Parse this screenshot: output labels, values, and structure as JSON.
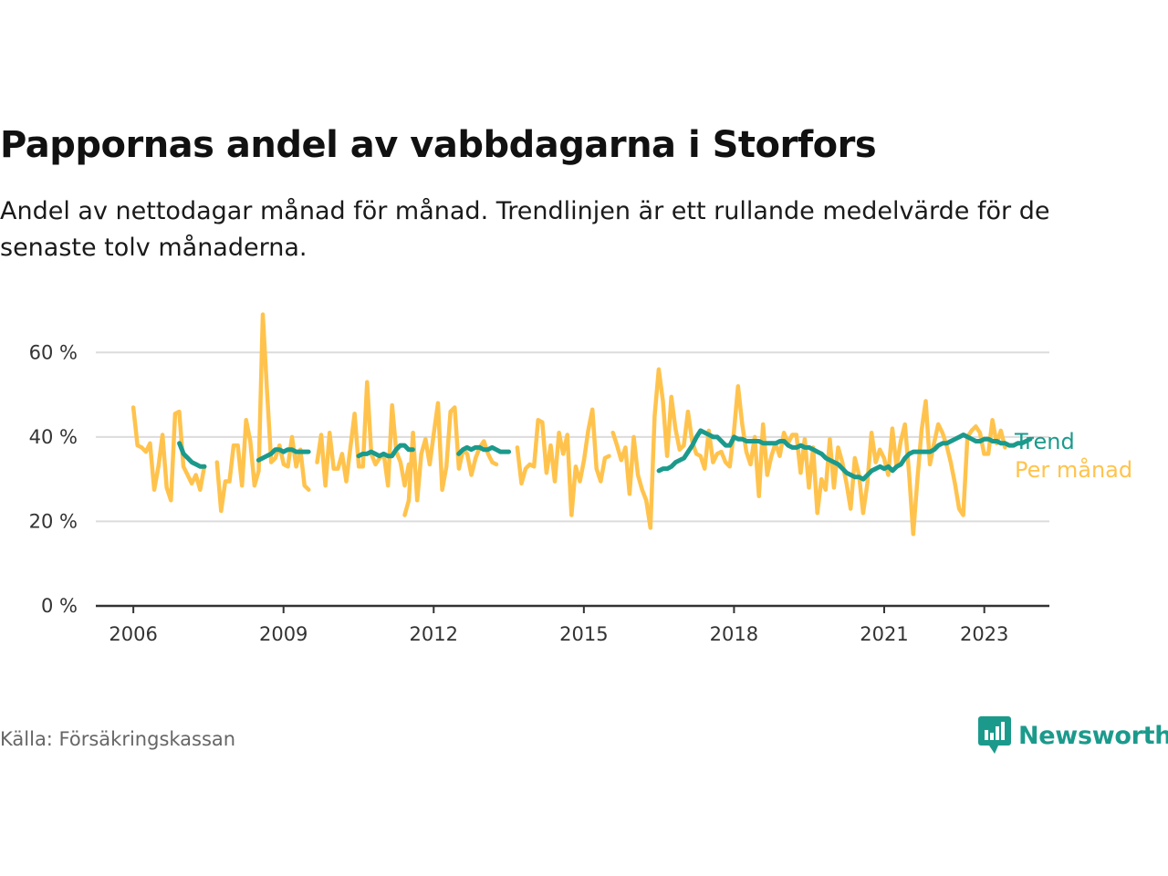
{
  "header": {
    "title": "Pappornas andel av vabbdagarna i Storfors",
    "subtitle": "Andel av nettodagar månad för månad. Trendlinjen är ett rullande medelvärde för de senaste tolv månaderna."
  },
  "footer": {
    "source": "Källa: Försäkringskassan",
    "logo_text": "Newsworthy"
  },
  "colors": {
    "monthly": "#ffc34d",
    "trend": "#1b9a8c",
    "grid": "#dcdcdc",
    "axis": "#333333"
  },
  "icons": {
    "logo": "bar-chart-speech-bubble-icon"
  },
  "chart_data": {
    "type": "line",
    "x_unit": "year",
    "xlim": [
      2005.25,
      2024.3
    ],
    "ylim": [
      0,
      70
    ],
    "y_ticks": [
      0,
      20,
      40,
      60
    ],
    "y_tick_labels": [
      "0 %",
      "20 %",
      "40 %",
      "60 %"
    ],
    "x_ticks": [
      2006,
      2009,
      2012,
      2015,
      2018,
      2021,
      2023
    ],
    "x_tick_labels": [
      "2006",
      "2009",
      "2012",
      "2015",
      "2018",
      "2021",
      "2023"
    ],
    "grid": "horizontal",
    "legend": "right",
    "series": [
      {
        "name": "Trend",
        "segments": [
          {
            "start": 2006.92,
            "values": [
              38.5,
              36,
              35,
              34,
              33.5,
              33,
              33
            ]
          },
          {
            "start": 2008.5,
            "values": [
              34.5,
              35,
              35.5,
              36,
              37,
              37,
              36.5,
              37,
              37,
              36.5,
              36.5,
              36.5,
              36.5
            ]
          },
          {
            "start": 2010.5,
            "values": [
              35.5,
              36,
              36,
              36.5,
              36,
              35.5,
              36,
              35.5,
              35.5,
              37,
              38,
              38,
              37,
              37
            ]
          },
          {
            "start": 2012.5,
            "values": [
              36,
              37,
              37.5,
              37,
              37.5,
              37.5,
              37,
              37,
              37.5,
              37,
              36.5,
              36.5,
              36.5
            ]
          },
          {
            "start": 2016.5,
            "values": [
              32,
              32.5,
              32.5,
              33,
              34,
              34.5,
              35,
              36.5,
              38,
              40,
              41.5,
              41,
              40.5,
              40,
              40,
              39,
              38,
              38,
              40,
              39.5,
              39.5,
              39,
              39,
              39,
              39,
              38.5,
              38.5,
              38.5,
              38.5,
              39,
              39,
              38,
              37.5,
              37.5,
              38,
              37.5,
              37.5,
              37,
              36.5,
              36,
              35,
              34.5,
              34,
              33.5,
              32.5,
              31.5,
              31,
              30.5,
              30.5,
              30,
              31,
              32,
              32.5,
              33,
              32.5,
              33,
              32,
              33,
              33.5,
              35,
              36,
              36.5,
              36.5,
              36.5,
              36.5,
              36.5,
              37,
              38,
              38.5,
              38.5,
              39,
              39.5,
              40,
              40.5,
              40,
              39.5,
              39,
              39,
              39.5,
              39.5,
              39,
              39,
              38.5,
              38.5,
              38,
              38,
              38.5,
              38.5,
              39,
              39.5
            ]
          }
        ]
      },
      {
        "name": "Per månad",
        "segments": [
          {
            "start": 2006.0,
            "values": [
              47,
              38,
              37.5,
              36.5,
              38.5,
              27.5,
              33,
              40.5,
              28,
              25,
              45.5,
              46,
              33,
              31,
              29,
              31,
              27.5,
              33
            ]
          },
          {
            "start": 2007.67,
            "values": [
              34,
              22.5,
              29.5,
              29.5,
              38,
              38,
              28.5,
              44,
              39,
              28.5,
              32,
              69,
              51,
              34,
              35,
              38,
              33.5,
              33,
              40,
              33,
              37,
              28.5,
              27.5
            ]
          },
          {
            "start": 2009.67,
            "values": [
              34,
              40.5,
              28.5,
              41,
              32.5,
              32.5,
              36,
              29.5,
              37.5,
              45.5,
              33,
              33,
              53,
              36,
              33.5,
              35,
              36,
              28.5,
              47.5,
              36.5,
              34,
              28.5,
              33.5
            ]
          },
          {
            "start": 2011.42,
            "values": [
              21.5,
              25,
              41,
              25,
              36,
              39.5,
              33.5,
              41,
              48,
              27.5,
              33,
              46,
              47,
              32.5,
              37,
              36,
              31,
              35,
              37.5,
              39,
              36,
              34,
              33.5
            ]
          },
          {
            "start": 2013.67,
            "values": [
              37.5,
              29,
              32.5,
              33.5,
              33,
              44,
              43.5,
              31.5,
              38,
              29.5,
              41,
              36,
              40.5,
              21.5,
              33,
              29.5,
              34.5,
              41.5,
              46.5,
              32.5,
              29.5,
              35,
              35.5
            ]
          },
          {
            "start": 2015.58,
            "values": [
              41,
              38,
              34.5,
              37.5,
              26.5,
              40,
              31,
              27.5,
              25,
              18.5,
              45,
              56,
              48.5,
              35.5,
              49.5,
              42,
              37,
              38,
              46,
              39,
              36,
              35.5,
              32.5,
              41.5,
              34,
              36,
              36.5,
              34,
              33,
              41,
              52,
              43,
              36.5,
              33.5,
              40,
              26,
              43,
              31,
              35.5,
              38.5,
              35.5,
              41,
              38.5,
              40.5,
              40.5,
              31.5,
              39.5,
              28,
              37.5,
              22,
              30,
              27.5,
              39.5,
              28,
              37.5,
              34,
              29,
              23,
              35,
              31,
              22,
              29,
              41,
              34,
              37,
              35,
              31,
              42,
              33,
              39,
              43,
              31.5,
              17,
              30,
              41.5,
              48.5,
              33.5,
              38.5,
              43,
              41,
              38,
              34,
              29,
              23,
              21.5,
              40,
              41.5,
              42.5,
              41,
              36,
              36,
              44,
              38.5,
              41.5,
              37.5
            ]
          }
        ]
      }
    ]
  }
}
